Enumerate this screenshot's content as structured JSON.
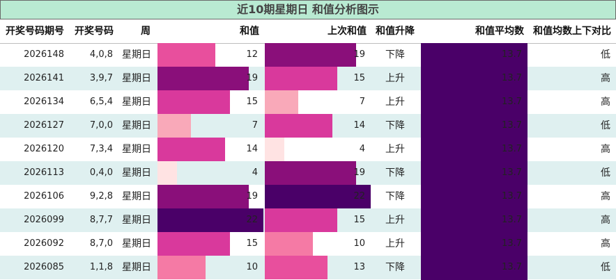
{
  "title": "近10期星期日 和值分析图示",
  "headers": {
    "issue": "开奖号码期号",
    "numbers": "开奖号码",
    "weekday": "周",
    "sum": "和值",
    "prev_sum": "上次和值",
    "trend": "和值升降",
    "avg": "和值平均数",
    "compare": "和值均数上下对比"
  },
  "rows": [
    {
      "issue": "2026148",
      "numbers": "4,0,8",
      "weekday": "星期日",
      "sum": "12",
      "prev_sum": "19",
      "trend": "下降",
      "avg": "13.7",
      "compare": "低"
    },
    {
      "issue": "2026141",
      "numbers": "3,9,7",
      "weekday": "星期日",
      "sum": "19",
      "prev_sum": "15",
      "trend": "上升",
      "avg": "13.7",
      "compare": "高"
    },
    {
      "issue": "2026134",
      "numbers": "6,5,4",
      "weekday": "星期日",
      "sum": "15",
      "prev_sum": "7",
      "trend": "上升",
      "avg": "13.7",
      "compare": "高"
    },
    {
      "issue": "2026127",
      "numbers": "7,0,0",
      "weekday": "星期日",
      "sum": "7",
      "prev_sum": "14",
      "trend": "下降",
      "avg": "13.7",
      "compare": "低"
    },
    {
      "issue": "2026120",
      "numbers": "7,3,4",
      "weekday": "星期日",
      "sum": "14",
      "prev_sum": "4",
      "trend": "上升",
      "avg": "13.7",
      "compare": "高"
    },
    {
      "issue": "2026113",
      "numbers": "0,4,0",
      "weekday": "星期日",
      "sum": "4",
      "prev_sum": "19",
      "trend": "下降",
      "avg": "13.7",
      "compare": "低"
    },
    {
      "issue": "2026106",
      "numbers": "9,2,8",
      "weekday": "星期日",
      "sum": "19",
      "prev_sum": "22",
      "trend": "下降",
      "avg": "13.7",
      "compare": "高"
    },
    {
      "issue": "2026099",
      "numbers": "8,7,7",
      "weekday": "星期日",
      "sum": "22",
      "prev_sum": "15",
      "trend": "上升",
      "avg": "13.7",
      "compare": "高"
    },
    {
      "issue": "2026092",
      "numbers": "8,7,0",
      "weekday": "星期日",
      "sum": "15",
      "prev_sum": "10",
      "trend": "上升",
      "avg": "13.7",
      "compare": "高"
    },
    {
      "issue": "2026085",
      "numbers": "1,1,8",
      "weekday": "星期日",
      "sum": "10",
      "prev_sum": "13",
      "trend": "下降",
      "avg": "13.7",
      "compare": "低"
    }
  ],
  "colors": {
    "title_bg": "#b9ead2",
    "alt_row_bg": "#dff0f0",
    "avg_bg": "#4a0068"
  }
}
